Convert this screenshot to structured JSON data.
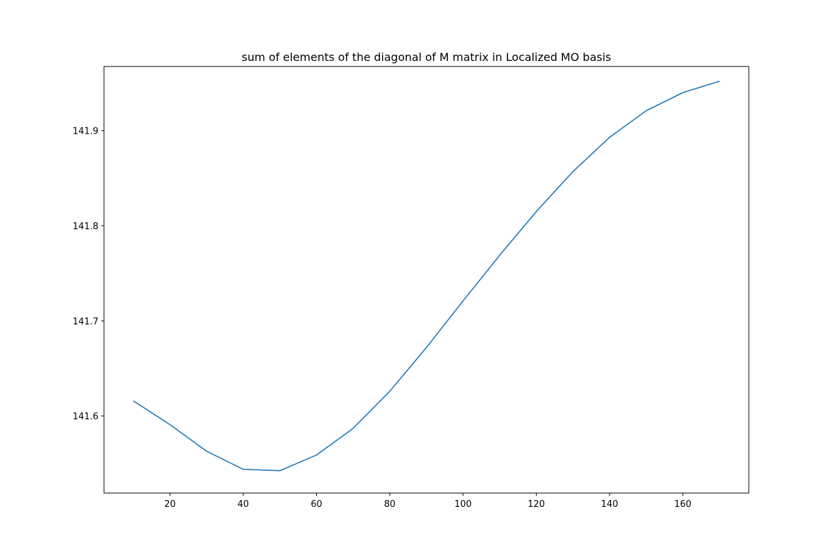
{
  "chart_data": {
    "type": "line",
    "title": "sum of elements of the diagonal of M matrix in Localized MO basis",
    "xlabel": "",
    "ylabel": "",
    "xlim": [
      2,
      178
    ],
    "ylim": [
      141.519,
      141.9675
    ],
    "x_ticks": [
      20,
      40,
      60,
      80,
      100,
      120,
      140,
      160
    ],
    "y_ticks": [
      141.6,
      141.7,
      141.8,
      141.9
    ],
    "x_tick_labels": [
      "20",
      "40",
      "60",
      "80",
      "100",
      "120",
      "140",
      "160"
    ],
    "y_tick_labels": [
      "141.6",
      "141.7",
      "141.8",
      "141.9"
    ],
    "grid": false,
    "legend": false,
    "series": [
      {
        "color": "#1f77b4",
        "x": [
          10,
          20,
          30,
          40,
          50,
          60,
          70,
          80,
          90,
          100,
          110,
          120,
          130,
          140,
          150,
          160,
          170
        ],
        "y": [
          141.616,
          141.591,
          141.563,
          141.544,
          141.5425,
          141.559,
          141.587,
          141.626,
          141.672,
          141.721,
          141.769,
          141.815,
          141.857,
          141.893,
          141.921,
          141.94,
          141.952
        ]
      }
    ]
  }
}
